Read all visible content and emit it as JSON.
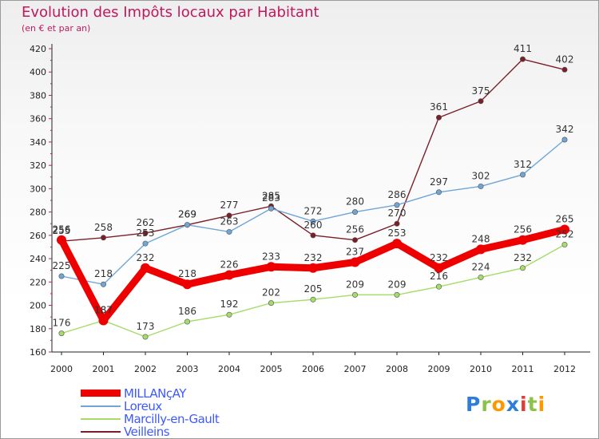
{
  "title": "Evolution des Impôts locaux par Habitant",
  "subtitle": "(en € et par an)",
  "brand": {
    "logo_text": "Proxiti",
    "letter_colors": [
      "#2e7dd7",
      "#8bc34a",
      "#ff9800",
      "#2e7dd7",
      "#e53935",
      "#8bc34a",
      "#ff9800"
    ]
  },
  "chart_data": {
    "type": "line",
    "x": [
      "2000",
      "2001",
      "2002",
      "2003",
      "2004",
      "2005",
      "2006",
      "2007",
      "2008",
      "2009",
      "2010",
      "2011",
      "2012"
    ],
    "yticks": [
      160,
      180,
      200,
      220,
      240,
      260,
      280,
      300,
      320,
      340,
      360,
      380,
      400,
      420
    ],
    "ylim": [
      160,
      420
    ],
    "grid": false,
    "legend_position": "bottom-left",
    "series": [
      {
        "name": "Veilleins",
        "color": "#7a1e28",
        "values": [
          255,
          258,
          262,
          269,
          277,
          285,
          260,
          256,
          270,
          361,
          375,
          411,
          402
        ]
      },
      {
        "name": "Loreux",
        "color": "#6fa6d6",
        "values": [
          225,
          218,
          253,
          269,
          263,
          283,
          272,
          280,
          286,
          297,
          302,
          312,
          342
        ]
      },
      {
        "name": "Marcilly-en-Gault",
        "color": "#a5dc6a",
        "values": [
          176,
          187,
          173,
          186,
          192,
          202,
          205,
          209,
          209,
          216,
          224,
          232,
          252
        ]
      },
      {
        "name": "MILLANçAY",
        "color": "#ee0000",
        "values": [
          256,
          187,
          232,
          218,
          226,
          233,
          232,
          237,
          253,
          232,
          248,
          256,
          265
        ]
      }
    ],
    "legend_order": [
      "MILLANçAY",
      "Loreux",
      "Marcilly-en-Gault",
      "Veilleins"
    ]
  }
}
